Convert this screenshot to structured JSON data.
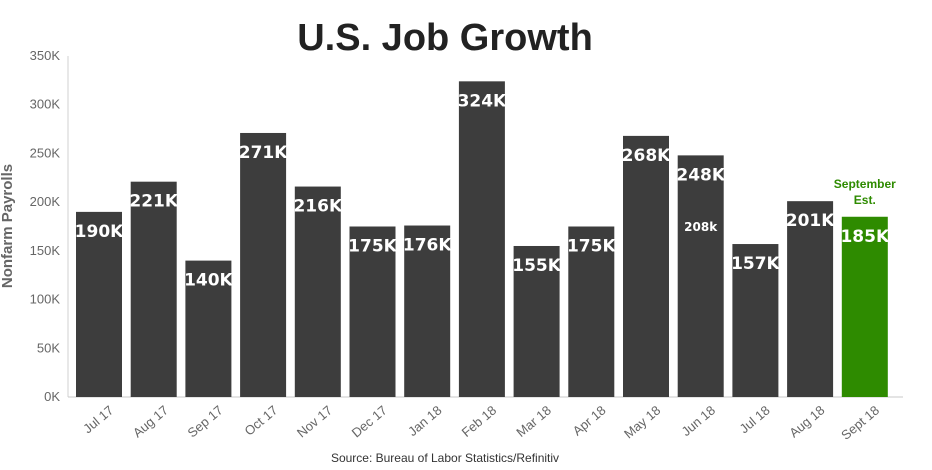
{
  "chart_data": {
    "type": "bar",
    "title": "U.S. Job Growth",
    "ylabel": "Nonfarm Payrolls",
    "xlabel": "",
    "source": "Source: Bureau of Labor Statistics/Refinitiv",
    "ylim": [
      0,
      350000
    ],
    "yticks": [
      {
        "value": 0,
        "label": "0K"
      },
      {
        "value": 50000,
        "label": "50K"
      },
      {
        "value": 100000,
        "label": "100K"
      },
      {
        "value": 150000,
        "label": "150K"
      },
      {
        "value": 200000,
        "label": "200K"
      },
      {
        "value": 250000,
        "label": "250K"
      },
      {
        "value": 300000,
        "label": "300K"
      },
      {
        "value": 350000,
        "label": "350K"
      }
    ],
    "grid": false,
    "categories": [
      "Jul 17",
      "Aug 17",
      "Sep 17",
      "Oct 17",
      "Nov 17",
      "Dec 17",
      "Jan 18",
      "Feb 18",
      "Mar 18",
      "Apr 18",
      "May 18",
      "Jun 18",
      "Jul 18",
      "Aug 18",
      "Sept 18"
    ],
    "values": [
      190000,
      221000,
      140000,
      271000,
      216000,
      175000,
      176000,
      324000,
      155000,
      175000,
      268000,
      248000,
      157000,
      201000,
      185000
    ],
    "data_labels": [
      "190K",
      "221K",
      "140K",
      "271K",
      "216K",
      "175K",
      "176K",
      "324K",
      "155K",
      "175K",
      "268K",
      "248K",
      "157K",
      "201K",
      "185K"
    ],
    "bar_color": "#3d3d3d",
    "highlight_color": "#2e8b00",
    "highlight_index": 14,
    "highlight_note": "September Est.",
    "highlight_note_color": "#2e8b00",
    "annotations": [
      {
        "category_index": 11,
        "text": "208k"
      }
    ]
  }
}
